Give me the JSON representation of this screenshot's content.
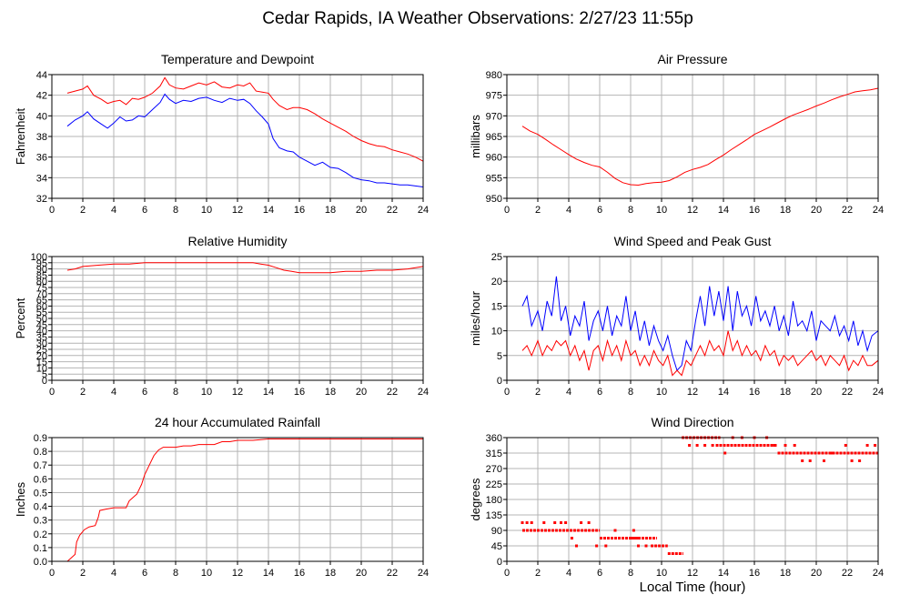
{
  "title": "Cedar Rapids, IA Weather Observations: 2/27/23 11:55p",
  "xlabel": "Local Time (hour)",
  "colors": {
    "red": "#ff0000",
    "blue": "#0000ff",
    "grid": "#b4b4b4"
  },
  "chart_data": [
    {
      "type": "line",
      "title": "Temperature and Dewpoint",
      "ylabel": "Fahrenheit",
      "xlim": [
        0,
        24
      ],
      "ylim": [
        32,
        44
      ],
      "x_ticks": [
        0,
        2,
        4,
        6,
        8,
        10,
        12,
        14,
        16,
        18,
        20,
        22,
        24
      ],
      "y_ticks": [
        32,
        34,
        36,
        38,
        40,
        42,
        44
      ],
      "grid": true,
      "series": [
        {
          "color": "#ff0000",
          "x": [
            1.0,
            1.5,
            2.0,
            2.3,
            2.7,
            3.2,
            3.6,
            4.0,
            4.4,
            4.8,
            5.2,
            5.6,
            6.0,
            6.5,
            7.0,
            7.3,
            7.6,
            8.0,
            8.5,
            9.0,
            9.5,
            10.0,
            10.5,
            11.0,
            11.5,
            12.0,
            12.4,
            12.8,
            13.2,
            13.6,
            14.0,
            14.3,
            14.7,
            15.2,
            15.6,
            16.0,
            16.5,
            17.0,
            17.5,
            18.0,
            18.5,
            19.0,
            19.5,
            20.0,
            20.5,
            21.0,
            21.5,
            22.0,
            22.5,
            23.0,
            23.5,
            24.0
          ],
          "values": [
            42.2,
            42.4,
            42.6,
            42.9,
            42.0,
            41.6,
            41.2,
            41.4,
            41.5,
            41.1,
            41.7,
            41.6,
            41.8,
            42.2,
            42.9,
            43.7,
            43.0,
            42.7,
            42.6,
            42.9,
            43.2,
            43.0,
            43.3,
            42.8,
            42.7,
            43.0,
            42.9,
            43.2,
            42.4,
            42.3,
            42.2,
            41.6,
            41.0,
            40.6,
            40.8,
            40.8,
            40.6,
            40.2,
            39.7,
            39.3,
            38.9,
            38.5,
            38.0,
            37.6,
            37.3,
            37.1,
            37.0,
            36.7,
            36.5,
            36.3,
            36.0,
            35.6
          ]
        },
        {
          "color": "#0000ff",
          "x": [
            1.0,
            1.5,
            2.0,
            2.3,
            2.7,
            3.2,
            3.6,
            4.0,
            4.4,
            4.8,
            5.2,
            5.6,
            6.0,
            6.5,
            7.0,
            7.3,
            7.6,
            8.0,
            8.5,
            9.0,
            9.5,
            10.0,
            10.5,
            11.0,
            11.5,
            12.0,
            12.4,
            12.8,
            13.2,
            13.6,
            14.0,
            14.3,
            14.7,
            15.2,
            15.6,
            16.0,
            16.5,
            17.0,
            17.5,
            18.0,
            18.5,
            19.0,
            19.5,
            20.0,
            20.5,
            21.0,
            21.5,
            22.0,
            22.5,
            23.0,
            23.5,
            24.0
          ],
          "values": [
            39.0,
            39.6,
            40.0,
            40.4,
            39.7,
            39.2,
            38.8,
            39.3,
            39.9,
            39.5,
            39.6,
            40.0,
            39.9,
            40.6,
            41.3,
            42.1,
            41.6,
            41.2,
            41.5,
            41.4,
            41.7,
            41.8,
            41.5,
            41.3,
            41.7,
            41.5,
            41.6,
            41.2,
            40.5,
            39.9,
            39.2,
            37.8,
            36.9,
            36.6,
            36.5,
            36.0,
            35.6,
            35.2,
            35.5,
            35.0,
            34.9,
            34.5,
            34.0,
            33.8,
            33.7,
            33.5,
            33.5,
            33.4,
            33.3,
            33.3,
            33.2,
            33.1
          ]
        }
      ]
    },
    {
      "type": "line",
      "title": "Air Pressure",
      "ylabel": "millibars",
      "xlim": [
        0,
        24
      ],
      "ylim": [
        950,
        980
      ],
      "x_ticks": [
        0,
        2,
        4,
        6,
        8,
        10,
        12,
        14,
        16,
        18,
        20,
        22,
        24
      ],
      "y_ticks": [
        950,
        955,
        960,
        965,
        970,
        975,
        980
      ],
      "grid": true,
      "series": [
        {
          "color": "#ff0000",
          "x": [
            1.0,
            1.5,
            2.0,
            2.5,
            3.0,
            3.5,
            4.0,
            4.5,
            5.0,
            5.5,
            6.0,
            6.5,
            7.0,
            7.5,
            8.0,
            8.5,
            9.0,
            9.5,
            10.0,
            10.5,
            11.0,
            11.5,
            12.0,
            12.5,
            13.0,
            13.5,
            14.0,
            14.5,
            15.0,
            15.5,
            16.0,
            16.5,
            17.0,
            17.5,
            18.0,
            18.5,
            19.0,
            19.5,
            20.0,
            20.5,
            21.0,
            21.5,
            22.0,
            22.5,
            23.0,
            23.5,
            24.0
          ],
          "values": [
            967.5,
            966.3,
            965.5,
            964.3,
            963.0,
            961.8,
            960.6,
            959.5,
            958.7,
            958.0,
            957.6,
            956.3,
            954.8,
            953.8,
            953.3,
            953.2,
            953.6,
            953.8,
            953.9,
            954.3,
            955.2,
            956.3,
            957.0,
            957.5,
            958.2,
            959.4,
            960.5,
            961.8,
            963.0,
            964.2,
            965.5,
            966.4,
            967.3,
            968.3,
            969.3,
            970.2,
            970.9,
            971.6,
            972.4,
            973.1,
            973.9,
            974.6,
            975.2,
            975.8,
            976.1,
            976.3,
            976.7
          ]
        }
      ]
    },
    {
      "type": "line",
      "title": "Relative Humidity",
      "ylabel": "Percent",
      "xlim": [
        0,
        24
      ],
      "ylim": [
        0,
        100
      ],
      "x_ticks": [
        0,
        2,
        4,
        6,
        8,
        10,
        12,
        14,
        16,
        18,
        20,
        22,
        24
      ],
      "y_ticks": [
        0,
        5,
        10,
        15,
        20,
        25,
        30,
        35,
        40,
        45,
        50,
        55,
        60,
        65,
        70,
        75,
        80,
        85,
        90,
        95,
        100
      ],
      "grid": true,
      "series": [
        {
          "color": "#ff0000",
          "x": [
            1.0,
            1.5,
            2.0,
            3.0,
            4.0,
            5.0,
            6.0,
            7.0,
            8.0,
            9.0,
            10.0,
            11.0,
            12.0,
            12.5,
            13.0,
            13.5,
            14.0,
            14.5,
            15.0,
            15.5,
            16.0,
            17.0,
            18.0,
            19.0,
            20.0,
            21.0,
            22.0,
            23.0,
            23.5,
            24.0
          ],
          "values": [
            89,
            90,
            92,
            93,
            94,
            94,
            95,
            95,
            95,
            95,
            95,
            95,
            95,
            95,
            95,
            94,
            93,
            91,
            89,
            88,
            87,
            87,
            87,
            88,
            88,
            89,
            89,
            90,
            91,
            92
          ]
        }
      ]
    },
    {
      "type": "line",
      "title": "Wind Speed and Peak Gust",
      "ylabel": "miles/hour",
      "xlim": [
        0,
        24
      ],
      "ylim": [
        0,
        25
      ],
      "x_ticks": [
        0,
        2,
        4,
        6,
        8,
        10,
        12,
        14,
        16,
        18,
        20,
        22,
        24
      ],
      "y_ticks": [
        0,
        5,
        10,
        15,
        20,
        25
      ],
      "grid": true,
      "series": [
        {
          "color": "#0000ff",
          "x": [
            1.0,
            1.3,
            1.6,
            2.0,
            2.3,
            2.6,
            2.9,
            3.2,
            3.5,
            3.8,
            4.1,
            4.4,
            4.7,
            5.0,
            5.3,
            5.6,
            5.9,
            6.2,
            6.5,
            6.8,
            7.1,
            7.4,
            7.7,
            8.0,
            8.3,
            8.6,
            8.9,
            9.2,
            9.5,
            9.8,
            10.1,
            10.4,
            10.7,
            11.0,
            11.3,
            11.6,
            11.9,
            12.2,
            12.5,
            12.8,
            13.1,
            13.4,
            13.7,
            14.0,
            14.3,
            14.6,
            14.9,
            15.2,
            15.5,
            15.8,
            16.1,
            16.4,
            16.7,
            17.0,
            17.3,
            17.6,
            17.9,
            18.2,
            18.5,
            18.8,
            19.1,
            19.4,
            19.7,
            20.0,
            20.3,
            20.6,
            20.9,
            21.2,
            21.5,
            21.8,
            22.1,
            22.4,
            22.7,
            23.0,
            23.3,
            23.6,
            24.0
          ],
          "values": [
            15,
            17,
            11,
            14,
            10,
            16,
            13,
            21,
            12,
            15,
            9,
            13,
            11,
            16,
            8,
            12,
            14,
            10,
            15,
            9,
            13,
            11,
            17,
            10,
            14,
            8,
            12,
            7,
            11,
            8,
            6,
            9,
            5,
            2,
            3,
            8,
            6,
            12,
            17,
            11,
            19,
            13,
            18,
            12,
            19,
            10,
            18,
            13,
            15,
            11,
            17,
            12,
            14,
            11,
            15,
            10,
            13,
            9,
            16,
            11,
            12,
            10,
            14,
            8,
            12,
            11,
            10,
            13,
            9,
            11,
            8,
            12,
            7,
            10,
            6,
            9,
            10
          ]
        },
        {
          "color": "#ff0000",
          "x": [
            1.0,
            1.3,
            1.6,
            2.0,
            2.3,
            2.6,
            2.9,
            3.2,
            3.5,
            3.8,
            4.1,
            4.4,
            4.7,
            5.0,
            5.3,
            5.6,
            5.9,
            6.2,
            6.5,
            6.8,
            7.1,
            7.4,
            7.7,
            8.0,
            8.3,
            8.6,
            8.9,
            9.2,
            9.5,
            9.8,
            10.1,
            10.4,
            10.7,
            11.0,
            11.3,
            11.6,
            11.9,
            12.2,
            12.5,
            12.8,
            13.1,
            13.4,
            13.7,
            14.0,
            14.3,
            14.6,
            14.9,
            15.2,
            15.5,
            15.8,
            16.1,
            16.4,
            16.7,
            17.0,
            17.3,
            17.6,
            17.9,
            18.2,
            18.5,
            18.8,
            19.1,
            19.4,
            19.7,
            20.0,
            20.3,
            20.6,
            20.9,
            21.2,
            21.5,
            21.8,
            22.1,
            22.4,
            22.7,
            23.0,
            23.3,
            23.6,
            24.0
          ],
          "values": [
            6,
            7,
            5,
            8,
            5,
            7,
            6,
            8,
            7,
            8,
            5,
            7,
            4,
            6,
            2,
            6,
            7,
            4,
            8,
            5,
            7,
            4,
            8,
            5,
            6,
            3,
            5,
            3,
            6,
            4,
            3,
            5,
            1,
            2,
            1,
            4,
            3,
            5,
            7,
            5,
            8,
            6,
            7,
            5,
            10,
            6,
            8,
            5,
            7,
            5,
            6,
            4,
            7,
            5,
            6,
            3,
            5,
            4,
            5,
            3,
            4,
            5,
            6,
            4,
            5,
            3,
            5,
            4,
            3,
            5,
            2,
            4,
            3,
            5,
            3,
            3,
            4
          ]
        }
      ]
    },
    {
      "type": "line",
      "title": "24 hour Accumulated Rainfall",
      "ylabel": "Inches",
      "xlim": [
        0,
        24
      ],
      "ylim": [
        0,
        0.9
      ],
      "x_ticks": [
        0,
        2,
        4,
        6,
        8,
        10,
        12,
        14,
        16,
        18,
        20,
        22,
        24
      ],
      "y_ticks": [
        0.0,
        0.1,
        0.2,
        0.3,
        0.4,
        0.5,
        0.6,
        0.7,
        0.8,
        0.9
      ],
      "grid": true,
      "series": [
        {
          "color": "#ff0000",
          "x": [
            1.0,
            1.2,
            1.5,
            1.6,
            1.8,
            2.1,
            2.4,
            2.8,
            3.0,
            3.1,
            3.5,
            4.0,
            4.5,
            4.8,
            5.0,
            5.2,
            5.5,
            5.8,
            6.0,
            6.3,
            6.6,
            6.9,
            7.2,
            7.6,
            8.0,
            8.5,
            9.0,
            9.5,
            10.0,
            10.5,
            11.0,
            11.5,
            12.0,
            13.0,
            14.0,
            15.0,
            16.0,
            18.0,
            20.0,
            22.0,
            24.0
          ],
          "values": [
            0.0,
            0.02,
            0.05,
            0.14,
            0.19,
            0.23,
            0.25,
            0.26,
            0.32,
            0.37,
            0.38,
            0.39,
            0.39,
            0.39,
            0.44,
            0.46,
            0.49,
            0.56,
            0.63,
            0.7,
            0.77,
            0.81,
            0.83,
            0.83,
            0.83,
            0.84,
            0.84,
            0.85,
            0.85,
            0.85,
            0.87,
            0.87,
            0.88,
            0.88,
            0.89,
            0.89,
            0.89,
            0.89,
            0.89,
            0.89,
            0.89
          ]
        }
      ]
    },
    {
      "type": "scatter",
      "title": "Wind Direction",
      "ylabel": "degrees",
      "xlim": [
        0,
        24
      ],
      "ylim": [
        0,
        360
      ],
      "x_ticks": [
        0,
        2,
        4,
        6,
        8,
        10,
        12,
        14,
        16,
        18,
        20,
        22,
        24
      ],
      "y_ticks": [
        0,
        45,
        90,
        135,
        180,
        225,
        270,
        315,
        360
      ],
      "grid": true,
      "series": [
        {
          "color": "#ff0000",
          "segments": [
            {
              "x0": 1.0,
              "x1": 4.5,
              "y": 90
            },
            {
              "x0": 4.3,
              "x1": 6.0,
              "y": 90
            },
            {
              "x0": 6.0,
              "x1": 8.5,
              "y": 67.5
            },
            {
              "x0": 8.0,
              "x1": 9.7,
              "y": 67.5
            },
            {
              "x0": 9.3,
              "x1": 10.4,
              "y": 45
            },
            {
              "x0": 10.4,
              "x1": 11.4,
              "y": 22.5
            },
            {
              "x0": 11.3,
              "x1": 13.8,
              "y": 360
            },
            {
              "x0": 13.5,
              "x1": 17.5,
              "y": 337.5
            },
            {
              "x0": 17.5,
              "x1": 24.0,
              "y": 315
            }
          ],
          "x": [
            1.0,
            1.3,
            1.6,
            2.4,
            3.1,
            3.5,
            3.8,
            4.2,
            4.5,
            4.8,
            5.3,
            5.8,
            6.4,
            7.0,
            7.5,
            8.2,
            8.5,
            9.0,
            11.8,
            12.3,
            12.8,
            13.3,
            14.1,
            14.6,
            15.2,
            16.0,
            16.8,
            17.3,
            18.0,
            18.6,
            19.1,
            19.6,
            20.5,
            21.0,
            21.9,
            22.3,
            22.8,
            23.3,
            23.8
          ],
          "values": [
            112.5,
            112.5,
            112.5,
            112.5,
            112.5,
            112.5,
            112.5,
            67.5,
            45,
            112.5,
            112.5,
            45,
            45,
            90,
            67.5,
            90,
            45,
            45,
            337.5,
            337.5,
            337.5,
            337.5,
            315,
            360,
            360,
            360,
            360,
            337.5,
            337.5,
            337.5,
            292.5,
            292.5,
            292.5,
            315,
            337.5,
            292.5,
            292.5,
            337.5,
            337.5
          ]
        }
      ]
    }
  ]
}
